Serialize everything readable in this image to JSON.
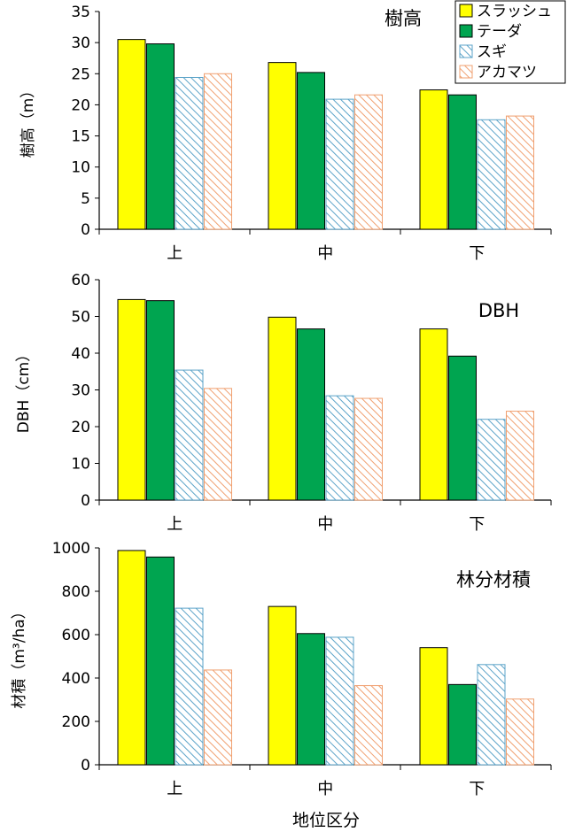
{
  "legend": {
    "entries": [
      {
        "name": "スラッシュ",
        "fill": "#ffff00",
        "pattern": "solid"
      },
      {
        "name": "テーダ",
        "fill": "#00a550",
        "pattern": "solid"
      },
      {
        "name": "スギ",
        "fill": "#5ba3c8",
        "pattern": "hatch"
      },
      {
        "name": "アカマツ",
        "fill": "#f0a070",
        "pattern": "hatch"
      }
    ]
  },
  "xlabel": "地位区分",
  "chart_data": [
    {
      "type": "bar",
      "title": "樹高",
      "ylabel": "樹高（m）",
      "categories": [
        "上",
        "中",
        "下"
      ],
      "ylim": [
        0,
        35
      ],
      "yticks": [
        0,
        5,
        10,
        15,
        20,
        25,
        30,
        35
      ],
      "series": [
        {
          "name": "スラッシュ",
          "values": [
            30.5,
            26.8,
            22.4
          ]
        },
        {
          "name": "テーダ",
          "values": [
            29.8,
            25.2,
            21.6
          ]
        },
        {
          "name": "スギ",
          "values": [
            24.4,
            20.9,
            17.6
          ]
        },
        {
          "name": "アカマツ",
          "values": [
            25.0,
            21.6,
            18.2
          ]
        }
      ]
    },
    {
      "type": "bar",
      "title": "DBH",
      "ylabel": "DBH（cm）",
      "categories": [
        "上",
        "中",
        "下"
      ],
      "ylim": [
        0,
        60
      ],
      "yticks": [
        0,
        10,
        20,
        30,
        40,
        50,
        60
      ],
      "series": [
        {
          "name": "スラッシュ",
          "values": [
            54.6,
            49.8,
            46.6
          ]
        },
        {
          "name": "テーダ",
          "values": [
            54.3,
            46.6,
            39.2
          ]
        },
        {
          "name": "スギ",
          "values": [
            35.4,
            28.4,
            22.0
          ]
        },
        {
          "name": "アカマツ",
          "values": [
            30.4,
            27.7,
            24.2
          ]
        }
      ]
    },
    {
      "type": "bar",
      "title": "林分材積",
      "ylabel": "材積（m³/ha）",
      "categories": [
        "上",
        "中",
        "下"
      ],
      "ylim": [
        0,
        1000
      ],
      "yticks": [
        0,
        200,
        400,
        600,
        800,
        1000
      ],
      "series": [
        {
          "name": "スラッシュ",
          "values": [
            988,
            730,
            540
          ]
        },
        {
          "name": "テーダ",
          "values": [
            958,
            605,
            370
          ]
        },
        {
          "name": "スギ",
          "values": [
            722,
            588,
            462
          ]
        },
        {
          "name": "アカマツ",
          "values": [
            437,
            365,
            303
          ]
        }
      ]
    }
  ]
}
